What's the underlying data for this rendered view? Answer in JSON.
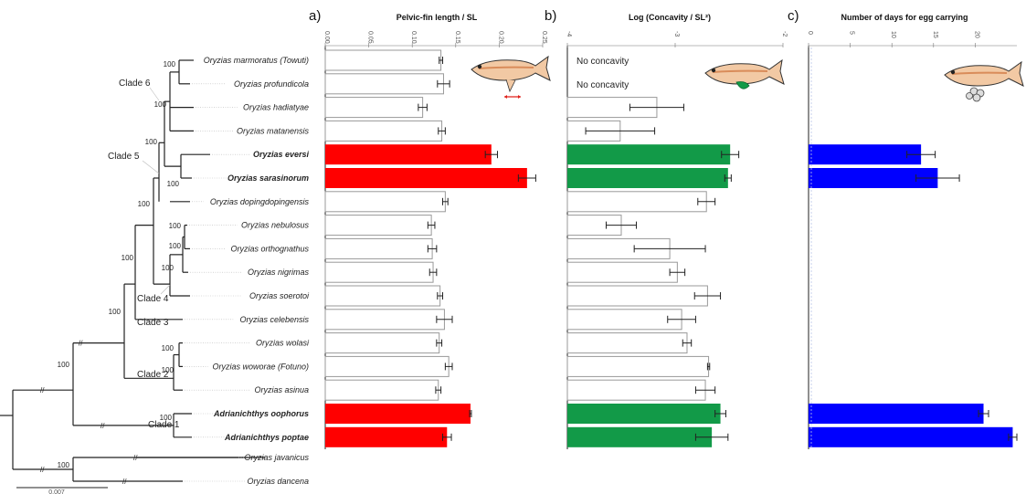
{
  "tree": {
    "taxa": [
      {
        "name": "Oryzias marmoratus (Towuti)",
        "bold": false
      },
      {
        "name": "Oryzias profundicola",
        "bold": false
      },
      {
        "name": "Oryzias hadiatyae",
        "bold": false
      },
      {
        "name": "Oryzias matanensis",
        "bold": false
      },
      {
        "name": "Oryzias eversi",
        "bold": true
      },
      {
        "name": "Oryzias sarasinorum",
        "bold": true
      },
      {
        "name": "Oryzias dopingdopingensis",
        "bold": false
      },
      {
        "name": "Oryzias nebulosus",
        "bold": false
      },
      {
        "name": "Oryzias orthognathus",
        "bold": false
      },
      {
        "name": "Oryzias nigrimas",
        "bold": false
      },
      {
        "name": "Oryzias soerotoi",
        "bold": false
      },
      {
        "name": "Oryzias celebensis",
        "bold": false
      },
      {
        "name": "Oryzias wolasi",
        "bold": false
      },
      {
        "name": "Oryzias woworae (Fotuno)",
        "bold": false
      },
      {
        "name": "Oryzias asinua",
        "bold": false
      },
      {
        "name": "Adrianichthys oophorus",
        "bold": true
      },
      {
        "name": "Adrianichthys poptae",
        "bold": true
      },
      {
        "name": "Oryzias javanicus",
        "bold": false
      },
      {
        "name": "Oryzias dancena",
        "bold": false
      }
    ],
    "clades": [
      "Clade 6",
      "Clade 5",
      "Clade 4",
      "Clade 3",
      "Clade 2",
      "Clade 1"
    ],
    "bootstrap_label": "100",
    "scale_label": "0.007"
  },
  "chart_data": [
    {
      "type": "bar",
      "panel_label": "a)",
      "title": "Pelvic-fin length / SL",
      "xlim": [
        0,
        0.25
      ],
      "ticks": [
        "0.00",
        "0.05",
        "0.10",
        "0.15",
        "0.20",
        "0.25"
      ],
      "categories": [
        "Oryzias marmoratus (Towuti)",
        "Oryzias profundicola",
        "Oryzias hadiatyae",
        "Oryzias matanensis",
        "Oryzias eversi",
        "Oryzias sarasinorum",
        "Oryzias dopingdopingensis",
        "Oryzias nebulosus",
        "Oryzias orthognathus",
        "Oryzias nigrimas",
        "Oryzias soerotoi",
        "Oryzias celebensis",
        "Oryzias wolasi",
        "Oryzias woworae (Fotuno)",
        "Oryzias asinua",
        "Adrianichthys oophorus",
        "Adrianichthys poptae"
      ],
      "values": [
        0.133,
        0.136,
        0.112,
        0.134,
        0.191,
        0.232,
        0.138,
        0.122,
        0.123,
        0.124,
        0.132,
        0.137,
        0.131,
        0.142,
        0.13,
        0.167,
        0.14
      ],
      "errors": [
        0.002,
        0.007,
        0.005,
        0.004,
        0.007,
        0.01,
        0.003,
        0.004,
        0.005,
        0.004,
        0.003,
        0.009,
        0.003,
        0.004,
        0.003,
        0.001,
        0.005
      ],
      "highlight": [
        false,
        false,
        false,
        false,
        true,
        true,
        false,
        false,
        false,
        false,
        false,
        false,
        false,
        false,
        false,
        true,
        true
      ],
      "highlight_color": "#ff0000"
    },
    {
      "type": "bar",
      "panel_label": "b)",
      "title": "Log (Concavity / SL²)",
      "xlim": [
        -4,
        -2
      ],
      "ticks": [
        "-4",
        "-3",
        "-2"
      ],
      "categories": [
        "Oryzias marmoratus (Towuti)",
        "Oryzias profundicola",
        "Oryzias hadiatyae",
        "Oryzias matanensis",
        "Oryzias eversi",
        "Oryzias sarasinorum",
        "Oryzias dopingdopingensis",
        "Oryzias nebulosus",
        "Oryzias orthognathus",
        "Oryzias nigrimas",
        "Oryzias soerotoi",
        "Oryzias celebensis",
        "Oryzias wolasi",
        "Oryzias woworae (Fotuno)",
        "Oryzias asinua",
        "Adrianichthys oophorus",
        "Adrianichthys poptae"
      ],
      "values": [
        null,
        null,
        -3.17,
        -3.51,
        -2.49,
        -2.51,
        -2.71,
        -3.5,
        -3.05,
        -2.98,
        -2.7,
        -2.94,
        -2.89,
        -2.69,
        -2.72,
        -2.58,
        -2.66
      ],
      "errors": [
        null,
        null,
        0.25,
        0.32,
        0.08,
        0.03,
        0.08,
        0.14,
        0.33,
        0.07,
        0.12,
        0.13,
        0.04,
        0.01,
        0.09,
        0.05,
        0.15
      ],
      "no_data_label": "No concavity",
      "highlight": [
        false,
        false,
        false,
        false,
        true,
        true,
        false,
        false,
        false,
        false,
        false,
        false,
        false,
        false,
        false,
        true,
        true
      ],
      "highlight_color": "#129a48"
    },
    {
      "type": "bar",
      "panel_label": "c)",
      "title": "Number of days for egg carrying",
      "xlim": [
        0,
        25
      ],
      "ticks": [
        "0",
        "5",
        "10",
        "15",
        "20"
      ],
      "categories": [
        "Oryzias marmoratus (Towuti)",
        "Oryzias profundicola",
        "Oryzias hadiatyae",
        "Oryzias matanensis",
        "Oryzias eversi",
        "Oryzias sarasinorum",
        "Oryzias dopingdopingensis",
        "Oryzias nebulosus",
        "Oryzias orthognathus",
        "Oryzias nigrimas",
        "Oryzias soerotoi",
        "Oryzias celebensis",
        "Oryzias wolasi",
        "Oryzias woworae (Fotuno)",
        "Oryzias asinua",
        "Adrianichthys oophorus",
        "Adrianichthys poptae"
      ],
      "values": [
        0,
        0,
        0,
        0,
        13.5,
        15.5,
        0,
        0,
        0,
        0,
        0,
        0,
        0,
        0,
        0,
        21,
        24.5
      ],
      "errors": [
        0,
        0,
        0,
        0,
        1.7,
        2.6,
        0,
        0,
        0,
        0,
        0,
        0,
        0,
        0,
        0,
        0.6,
        0.5
      ],
      "highlight": [
        false,
        false,
        false,
        false,
        true,
        true,
        false,
        false,
        false,
        false,
        false,
        false,
        false,
        false,
        false,
        true,
        true
      ],
      "highlight_color": "#0000ff"
    }
  ],
  "colors": {
    "line": "#222222",
    "guide": "#bbbbbb",
    "bar_outline": "#999999",
    "fish_body": "#f2c9a4",
    "fish_stripe": "#d98c5a"
  }
}
